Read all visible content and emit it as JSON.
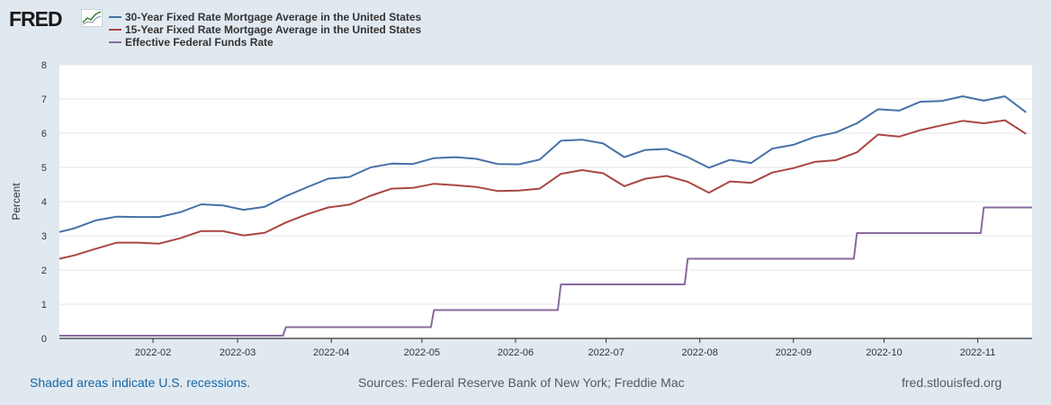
{
  "logo": {
    "text": "FRED"
  },
  "colors": {
    "series30": "#4572a7",
    "series15": "#aa4643",
    "fedfunds": "#89699e"
  },
  "footer": {
    "left": "Shaded areas indicate U.S. recessions.",
    "middle": "Sources: Federal Reserve Bank of New York; Freddie Mac",
    "right": "fred.stlouisfed.org"
  },
  "chart_data": {
    "type": "line",
    "title": "",
    "xlabel": "",
    "ylabel": "Percent",
    "ylim": [
      0,
      8
    ],
    "yticks": [
      0,
      1,
      2,
      3,
      4,
      5,
      6,
      7,
      8
    ],
    "xlim": [
      "2022-01-01",
      "2022-11-19"
    ],
    "x_tick_labels": [
      "2022-02",
      "2022-03",
      "2022-04",
      "2022-05",
      "2022-06",
      "2022-07",
      "2022-08",
      "2022-09",
      "2022-10",
      "2022-11"
    ],
    "x_tick_dates": [
      "2022-02-01",
      "2022-03-01",
      "2022-04-01",
      "2022-05-01",
      "2022-06-01",
      "2022-07-01",
      "2022-08-01",
      "2022-09-01",
      "2022-10-01",
      "2022-11-01"
    ],
    "series": [
      {
        "name": "30-Year Fixed Rate Mortgage Average in the United States",
        "color": "#4572a7",
        "x": [
          "2022-01-01",
          "2022-01-06",
          "2022-01-13",
          "2022-01-20",
          "2022-01-27",
          "2022-02-03",
          "2022-02-10",
          "2022-02-17",
          "2022-02-24",
          "2022-03-03",
          "2022-03-10",
          "2022-03-17",
          "2022-03-24",
          "2022-03-31",
          "2022-04-07",
          "2022-04-14",
          "2022-04-21",
          "2022-04-28",
          "2022-05-05",
          "2022-05-12",
          "2022-05-19",
          "2022-05-26",
          "2022-06-02",
          "2022-06-09",
          "2022-06-16",
          "2022-06-23",
          "2022-06-30",
          "2022-07-07",
          "2022-07-14",
          "2022-07-21",
          "2022-07-28",
          "2022-08-04",
          "2022-08-11",
          "2022-08-18",
          "2022-08-25",
          "2022-09-01",
          "2022-09-08",
          "2022-09-15",
          "2022-09-22",
          "2022-09-29",
          "2022-10-06",
          "2022-10-13",
          "2022-10-20",
          "2022-10-27",
          "2022-11-03",
          "2022-11-10",
          "2022-11-17"
        ],
        "values": [
          3.11,
          3.22,
          3.45,
          3.56,
          3.55,
          3.55,
          3.69,
          3.92,
          3.89,
          3.76,
          3.85,
          4.16,
          4.42,
          4.67,
          4.72,
          5.0,
          5.11,
          5.1,
          5.27,
          5.3,
          5.25,
          5.1,
          5.09,
          5.23,
          5.78,
          5.81,
          5.7,
          5.3,
          5.51,
          5.54,
          5.3,
          4.99,
          5.22,
          5.13,
          5.55,
          5.66,
          5.89,
          6.02,
          6.29,
          6.7,
          6.66,
          6.92,
          6.94,
          7.08,
          6.95,
          7.08,
          6.61
        ]
      },
      {
        "name": "15-Year Fixed Rate Mortgage Average in the United States",
        "color": "#aa4643",
        "x": [
          "2022-01-01",
          "2022-01-06",
          "2022-01-13",
          "2022-01-20",
          "2022-01-27",
          "2022-02-03",
          "2022-02-10",
          "2022-02-17",
          "2022-02-24",
          "2022-03-03",
          "2022-03-10",
          "2022-03-17",
          "2022-03-24",
          "2022-03-31",
          "2022-04-07",
          "2022-04-14",
          "2022-04-21",
          "2022-04-28",
          "2022-05-05",
          "2022-05-12",
          "2022-05-19",
          "2022-05-26",
          "2022-06-02",
          "2022-06-09",
          "2022-06-16",
          "2022-06-23",
          "2022-06-30",
          "2022-07-07",
          "2022-07-14",
          "2022-07-21",
          "2022-07-28",
          "2022-08-04",
          "2022-08-11",
          "2022-08-18",
          "2022-08-25",
          "2022-09-01",
          "2022-09-08",
          "2022-09-15",
          "2022-09-22",
          "2022-09-29",
          "2022-10-06",
          "2022-10-13",
          "2022-10-20",
          "2022-10-27",
          "2022-11-03",
          "2022-11-10",
          "2022-11-17"
        ],
        "values": [
          2.33,
          2.43,
          2.62,
          2.8,
          2.8,
          2.77,
          2.93,
          3.14,
          3.14,
          3.01,
          3.09,
          3.39,
          3.63,
          3.83,
          3.91,
          4.17,
          4.38,
          4.4,
          4.52,
          4.48,
          4.43,
          4.31,
          4.32,
          4.38,
          4.81,
          4.92,
          4.83,
          4.45,
          4.67,
          4.75,
          4.58,
          4.26,
          4.59,
          4.55,
          4.85,
          4.98,
          5.16,
          5.21,
          5.44,
          5.96,
          5.9,
          6.09,
          6.23,
          6.36,
          6.29,
          6.38,
          5.98
        ]
      },
      {
        "name": "Effective Federal Funds Rate",
        "color": "#89699e",
        "x": [
          "2022-01-01",
          "2022-03-16",
          "2022-03-17",
          "2022-05-04",
          "2022-05-05",
          "2022-06-15",
          "2022-06-16",
          "2022-07-27",
          "2022-07-28",
          "2022-09-21",
          "2022-09-22",
          "2022-11-02",
          "2022-11-03",
          "2022-11-19"
        ],
        "values": [
          0.08,
          0.08,
          0.33,
          0.33,
          0.83,
          0.83,
          1.58,
          1.58,
          2.33,
          2.33,
          3.08,
          3.08,
          3.83,
          3.83
        ]
      }
    ]
  }
}
